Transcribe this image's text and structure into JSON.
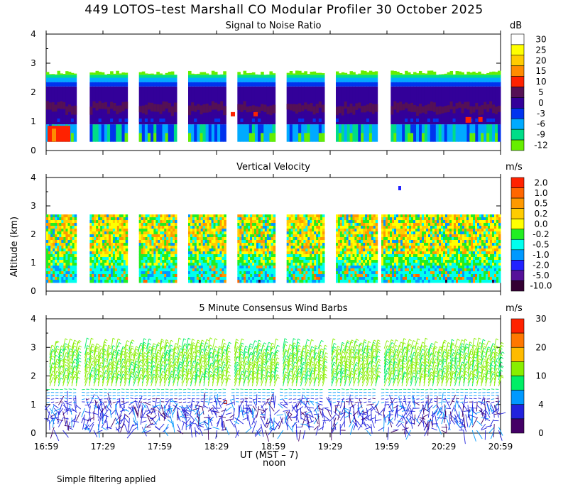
{
  "figure": {
    "title": "449 LOTOS–test Marshall CO Modular Profiler 30 October 2025",
    "ylabel": "Altitude (km)",
    "xlabel": "UT  (MST – 7)",
    "noon_label": "noon",
    "footnote": "Simple filtering applied"
  },
  "chart_data": [
    {
      "type": "heatmap",
      "title": "Signal to Noise Ratio",
      "ylabel": "Altitude (km)",
      "xlabel": "UT (MST - 7)",
      "ylim": [
        0,
        4
      ],
      "yticks": [
        "0",
        "1",
        "2",
        "3",
        "4"
      ],
      "xticks": [
        "16:59",
        "17:29",
        "17:59",
        "18:29",
        "18:59",
        "19:29",
        "19:59",
        "20:29",
        "20:59"
      ],
      "unit": "dB",
      "colorbar_ticks": [
        "30",
        "25",
        "20",
        "15",
        "10",
        "5",
        "0",
        "-3",
        "-6",
        "-9",
        "-12"
      ],
      "colors": [
        "#ffffff",
        "#ffff00",
        "#ffcc00",
        "#ff8c00",
        "#ff2200",
        "#551155",
        "#330099",
        "#0033ee",
        "#00aaff",
        "#00dd88",
        "#66ee00"
      ],
      "data_blocks_ut": [
        [
          "16:59",
          "17:15"
        ],
        [
          "17:22",
          "17:42"
        ],
        [
          "17:48",
          "18:08"
        ],
        [
          "18:14",
          "18:34"
        ],
        [
          "18:40",
          "19:00"
        ],
        [
          "19:06",
          "19:26"
        ],
        [
          "19:32",
          "19:54"
        ],
        [
          "20:01",
          "20:59"
        ]
      ],
      "layers": [
        {
          "range_km": [
            0.3,
            0.9
          ],
          "level": "-9 to -3 dB"
        },
        {
          "range_km": [
            0.9,
            2.2
          ],
          "level": "0 to 5 dB"
        },
        {
          "range_km": [
            2.2,
            2.7
          ],
          "level": "-12 to -3 dB"
        }
      ]
    },
    {
      "type": "heatmap",
      "title": "Vertical Velocity",
      "ylabel": "Altitude (km)",
      "ylim": [
        0,
        4
      ],
      "yticks": [
        "0",
        "1",
        "2",
        "3",
        "4"
      ],
      "xticks": [
        "16:59",
        "17:29",
        "17:59",
        "18:29",
        "18:59",
        "19:29",
        "19:59",
        "20:29",
        "20:59"
      ],
      "unit": "m/s",
      "colorbar_ticks": [
        "2.0",
        "1.0",
        "0.5",
        "0.2",
        "0.0",
        "-0.2",
        "-0.5",
        "-1.0",
        "-2.0",
        "-5.0",
        "-10.0"
      ],
      "colors": [
        "#ff2200",
        "#ff6600",
        "#ff9900",
        "#ffcc00",
        "#ffff00",
        "#22ee22",
        "#00ffee",
        "#0099ff",
        "#2222ff",
        "#551199",
        "#330033"
      ],
      "data_blocks_ut": [
        [
          "16:59",
          "17:15"
        ],
        [
          "17:22",
          "17:42"
        ],
        [
          "17:48",
          "18:08"
        ],
        [
          "18:14",
          "18:34"
        ],
        [
          "18:40",
          "19:00"
        ],
        [
          "19:06",
          "19:26"
        ],
        [
          "19:32",
          "19:54"
        ],
        [
          "19:56",
          "20:59"
        ]
      ],
      "range_km": [
        0.3,
        2.7
      ]
    },
    {
      "type": "scatter",
      "title": "5 Minute Consensus Wind Barbs",
      "ylabel": "Altitude (km)",
      "ylim": [
        0,
        4
      ],
      "yticks": [
        "0",
        "1",
        "2",
        "3",
        "4"
      ],
      "xticks": [
        "16:59",
        "17:29",
        "17:59",
        "18:29",
        "18:59",
        "19:29",
        "19:59",
        "20:29",
        "20:59"
      ],
      "unit": "m/s",
      "colorbar_ticks": [
        "30",
        "20",
        "10",
        "4",
        "0"
      ],
      "colors": [
        "#ff2200",
        "#ff7700",
        "#ffbb00",
        "#88ee00",
        "#00ee66",
        "#0099ff",
        "#2222dd",
        "#440066"
      ],
      "speed_by_altitude": [
        {
          "range_km": [
            0.0,
            1.3
          ],
          "speed": "0 to 4 m/s"
        },
        {
          "range_km": [
            1.3,
            1.6
          ],
          "speed": "4 to 10 m/s"
        },
        {
          "range_km": [
            1.6,
            3.0
          ],
          "speed": "10 to 20 m/s"
        }
      ]
    }
  ]
}
